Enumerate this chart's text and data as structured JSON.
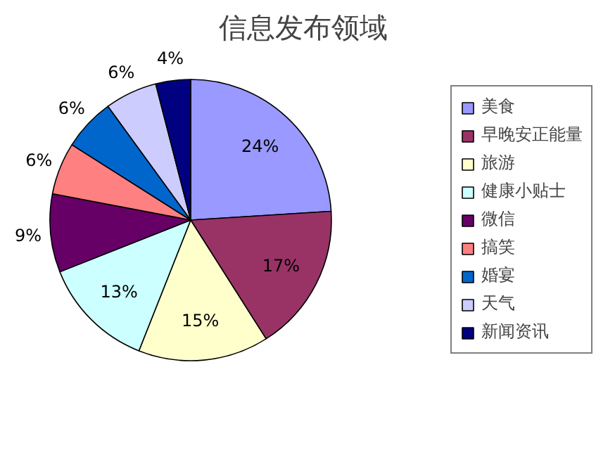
{
  "chart_data": {
    "type": "pie",
    "title": "信息发布领域",
    "categories": [
      "美食",
      "早晚安正能量",
      "旅游",
      "健康小贴士",
      "微信",
      "搞笑",
      "婚宴",
      "天气",
      "新闻资讯"
    ],
    "values": [
      24,
      17,
      15,
      13,
      9,
      6,
      6,
      6,
      4
    ],
    "colors": [
      "#9999ff",
      "#993366",
      "#ffffcc",
      "#ccffff",
      "#660066",
      "#ff8080",
      "#0066cc",
      "#ccccff",
      "#000080"
    ],
    "value_labels": [
      "24%",
      "17%",
      "15%",
      "13%",
      "9%",
      "6%",
      "6%",
      "6%",
      "4%"
    ],
    "legend": "right"
  }
}
